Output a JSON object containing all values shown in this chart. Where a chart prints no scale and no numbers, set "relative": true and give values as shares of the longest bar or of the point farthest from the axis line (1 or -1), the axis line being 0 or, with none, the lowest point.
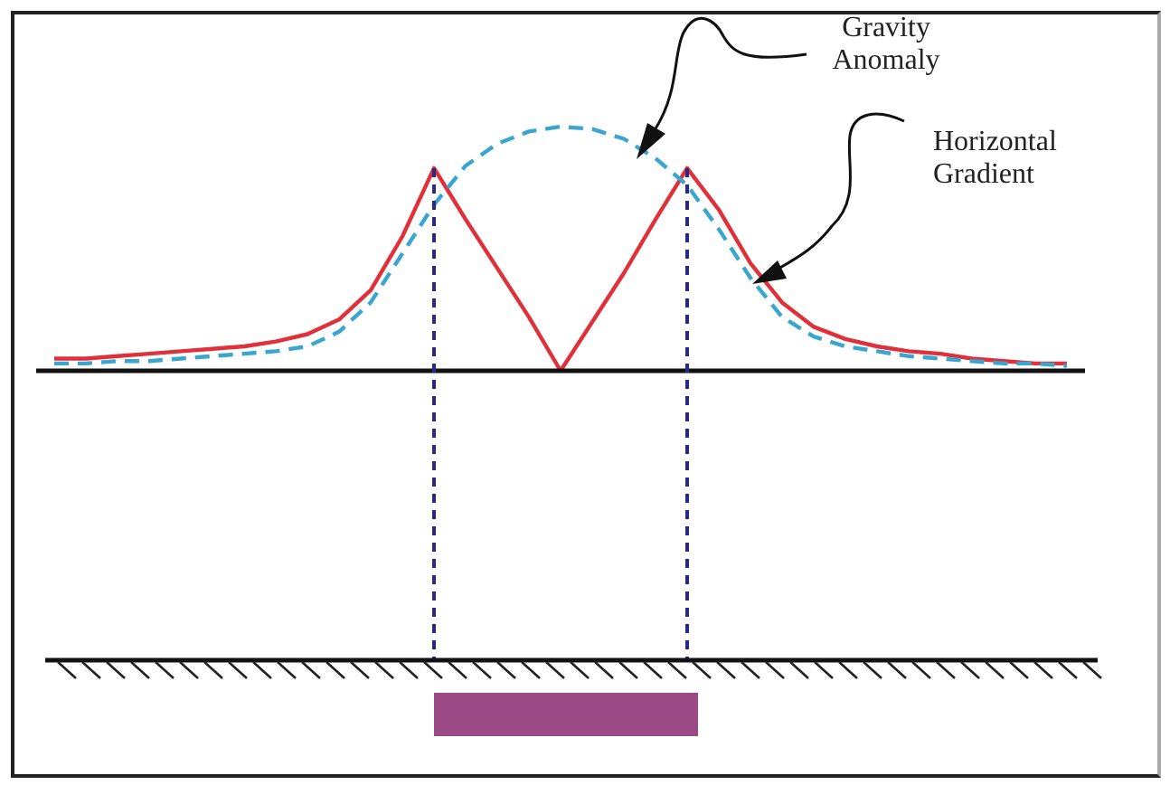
{
  "chart_data": {
    "type": "line",
    "relative": true,
    "categories": [
      null,
      null,
      null,
      null,
      null,
      null,
      null,
      null,
      null,
      null,
      null,
      null,
      null,
      null,
      null,
      null,
      null,
      null,
      null,
      null,
      null,
      null,
      null,
      null,
      null,
      null,
      null,
      null,
      null,
      null,
      null,
      null,
      null
    ],
    "series": [
      {
        "name": "Gravity Anomaly",
        "color": "#3aa6d0",
        "line_style": "dashed",
        "values": [
          0.03,
          0.03,
          0.04,
          0.04,
          0.05,
          0.06,
          0.07,
          0.08,
          0.1,
          0.16,
          0.28,
          0.48,
          0.68,
          0.84,
          0.93,
          0.98,
          1.0,
          0.99,
          0.95,
          0.87,
          0.76,
          0.58,
          0.38,
          0.22,
          0.14,
          0.1,
          0.08,
          0.06,
          0.05,
          0.04,
          0.03,
          0.03,
          0.02
        ]
      },
      {
        "name": "Horizontal Gradient",
        "color": "#e0303a",
        "line_style": "solid",
        "values": [
          0.05,
          0.05,
          0.06,
          0.07,
          0.08,
          0.09,
          0.1,
          0.12,
          0.15,
          0.21,
          0.33,
          0.55,
          0.83,
          0.62,
          0.42,
          0.22,
          0.0,
          0.2,
          0.4,
          0.62,
          0.83,
          0.66,
          0.44,
          0.28,
          0.18,
          0.13,
          0.1,
          0.08,
          0.07,
          0.05,
          0.04,
          0.03,
          0.03
        ]
      }
    ],
    "marker": "none",
    "legend": false
  }
}
